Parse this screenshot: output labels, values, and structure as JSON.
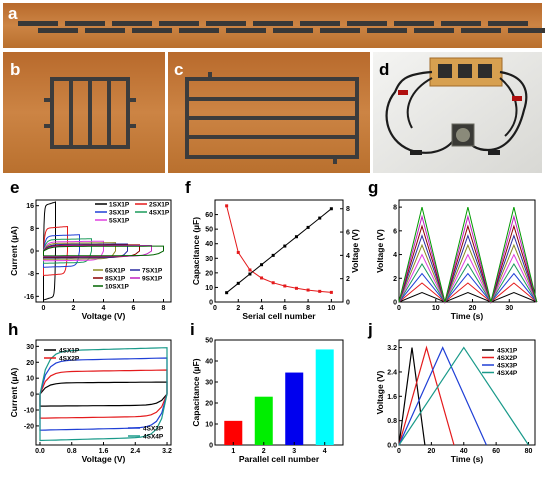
{
  "panel_labels": {
    "a": "a",
    "b": "b",
    "c": "c",
    "d": "d",
    "e": "e",
    "f": "f",
    "g": "g",
    "h": "h",
    "i": "i",
    "j": "j"
  },
  "colors": {
    "photo_bg": "#c47a38",
    "pattern": "#3c3c3c",
    "tape": "#d7a050"
  },
  "panel_d_legend": {
    "items": []
  },
  "chart_data": [
    {
      "panel": "e",
      "type": "line",
      "xlabel": "Voltage (V)",
      "ylabel": "Current (µA)",
      "xlim": [
        -0.5,
        8.5
      ],
      "ylim": [
        -18,
        18
      ],
      "xticks": [
        "0",
        "2",
        "4",
        "6",
        "8"
      ],
      "yticks": [
        "-16",
        "-8",
        "0",
        "8",
        "16"
      ],
      "legend_top": [
        "1SX1P",
        "2SX1P",
        "3SX1P",
        "4SX1P",
        "5SX1P"
      ],
      "legend_bottom": [
        "6SX1P",
        "7SX1P",
        "8SX1P",
        "9SX1P",
        "10SX1P"
      ],
      "series": [
        {
          "name": "1SX1P",
          "vmax": 0.8,
          "current": 16,
          "color": "#000000"
        },
        {
          "name": "2SX1P",
          "vmax": 1.6,
          "current": 8,
          "color": "#e41a1c"
        },
        {
          "name": "3SX1P",
          "vmax": 2.4,
          "current": 5.3,
          "color": "#1f3fd6"
        },
        {
          "name": "4SX1P",
          "vmax": 3.2,
          "current": 4,
          "color": "#1a9a5a"
        },
        {
          "name": "5SX1P",
          "vmax": 4.0,
          "current": 3.2,
          "color": "#e040e0"
        },
        {
          "name": "6SX1P",
          "vmax": 4.8,
          "current": 2.7,
          "color": "#8a8a20"
        },
        {
          "name": "7SX1P",
          "vmax": 5.6,
          "current": 2.3,
          "color": "#2a2aa0"
        },
        {
          "name": "8SX1P",
          "vmax": 6.4,
          "current": 2.0,
          "color": "#8b0000"
        },
        {
          "name": "9SX1P",
          "vmax": 7.2,
          "current": 1.8,
          "color": "#c020c0"
        },
        {
          "name": "10SX1P",
          "vmax": 8.0,
          "current": 1.6,
          "color": "#006400"
        }
      ]
    },
    {
      "panel": "f",
      "type": "line",
      "xlabel": "Serial cell number",
      "ylabel": "Capacitance (µF)",
      "y2label": "Voltage (V)",
      "xlim": [
        0,
        11
      ],
      "ylim": [
        0,
        70
      ],
      "y2lim": [
        0,
        8.75
      ],
      "xticks": [
        "0",
        "2",
        "4",
        "6",
        "8",
        "10"
      ],
      "yticks": [
        "0",
        "10",
        "20",
        "30",
        "40",
        "50",
        "60"
      ],
      "y2ticks": [
        "0",
        "2",
        "4",
        "6",
        "8"
      ],
      "x": [
        1,
        2,
        3,
        4,
        5,
        6,
        7,
        8,
        9,
        10
      ],
      "capacitance": [
        66,
        34,
        22,
        16.5,
        13.2,
        11,
        9.4,
        8.2,
        7.3,
        6.6
      ],
      "voltage": [
        0.8,
        1.6,
        2.4,
        3.2,
        4.0,
        4.8,
        5.6,
        6.4,
        7.2,
        8.0
      ]
    },
    {
      "panel": "g",
      "type": "line",
      "xlabel": "Time (s)",
      "ylabel": "Voltage (V)",
      "xlim": [
        0,
        37
      ],
      "ylim": [
        0,
        8.6
      ],
      "xticks": [
        "0",
        "10",
        "20",
        "30"
      ],
      "yticks": [
        "0",
        "2",
        "4",
        "6",
        "8"
      ],
      "period": 12.5,
      "first_peak": 6.25,
      "cycles": 3,
      "peaks": [
        0.8,
        1.6,
        2.4,
        3.2,
        4.0,
        4.8,
        5.6,
        6.4,
        7.2,
        8.0
      ],
      "colors": [
        "#000000",
        "#e41a1c",
        "#1f3fd6",
        "#1a9a5a",
        "#e040e0",
        "#8a8a20",
        "#2a2aa0",
        "#8b0000",
        "#c020c0",
        "#009900"
      ]
    },
    {
      "panel": "h",
      "type": "line",
      "xlabel": "Voltage (V)",
      "ylabel": "Current (µA)",
      "xlim": [
        -0.1,
        3.3
      ],
      "ylim": [
        -32,
        34
      ],
      "xticks": [
        "0.0",
        "0.8",
        "1.6",
        "2.4",
        "3.2"
      ],
      "yticks": [
        "-20",
        "-10",
        "0",
        "10",
        "20",
        "30"
      ],
      "legend_top": [
        "4SX1P",
        "4SX2P"
      ],
      "legend_bottom": [
        "4SX3P",
        "4SX4P"
      ],
      "series": [
        {
          "name": "4SX1P",
          "current": 7,
          "color": "#000000"
        },
        {
          "name": "4SX2P",
          "current": 14,
          "color": "#e41a1c"
        },
        {
          "name": "4SX3P",
          "current": 21,
          "color": "#1f3fd6"
        },
        {
          "name": "4SX4P",
          "current": 27,
          "color": "#1a9a8a"
        }
      ]
    },
    {
      "panel": "i",
      "type": "bar",
      "xlabel": "Parallel cell number",
      "ylabel": "Capacitance (µF)",
      "categories": [
        "1",
        "2",
        "3",
        "4"
      ],
      "values": [
        11.5,
        23,
        34.5,
        45.5
      ],
      "ylim": [
        0,
        50
      ],
      "yticks": [
        "0",
        "10",
        "20",
        "30",
        "40",
        "50"
      ],
      "colors": [
        "#ff0000",
        "#00ee00",
        "#0000ee",
        "#00ffff"
      ]
    },
    {
      "panel": "j",
      "type": "line",
      "xlabel": "Time (s)",
      "ylabel": "Voltage (V)",
      "xlim": [
        0,
        84
      ],
      "ylim": [
        0,
        3.45
      ],
      "xticks": [
        "0",
        "20",
        "40",
        "60",
        "80"
      ],
      "yticks": [
        "0.0",
        "0.8",
        "1.6",
        "2.4",
        "3.2"
      ],
      "series": [
        {
          "name": "4SX1P",
          "peak_t": 8,
          "end_t": 16,
          "color": "#000000"
        },
        {
          "name": "4SX2P",
          "peak_t": 17,
          "end_t": 34,
          "color": "#e41a1c"
        },
        {
          "name": "4SX3P",
          "peak_t": 27,
          "end_t": 54,
          "color": "#1f3fd6"
        },
        {
          "name": "4SX4P",
          "peak_t": 40,
          "end_t": 80,
          "color": "#1a9a8a"
        }
      ]
    }
  ]
}
